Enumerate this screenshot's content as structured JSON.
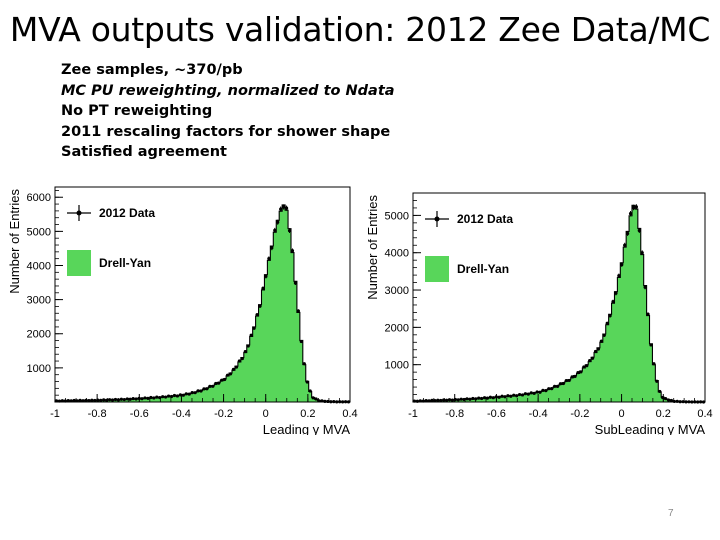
{
  "slide": {
    "title": "MVA outputs validation:  2012 Zee Data/MC",
    "notes": [
      {
        "text": "Zee samples, ~370/pb",
        "italic": false
      },
      {
        "text": "MC PU reweighting,  normalized to Ndata",
        "italic": true
      },
      {
        "text": "No PT reweighting",
        "italic": false
      },
      {
        "text": "2011 rescaling factors for shower shape",
        "italic": false
      },
      {
        "text": "Satisfied agreement",
        "italic": false
      }
    ],
    "page_number": "7"
  },
  "colors": {
    "mc_fill": "#58d65a",
    "mc_line": "#000000",
    "data_marker": "#000000"
  },
  "chart_data": [
    {
      "type": "area",
      "xlabel": "Leading γ MVA",
      "ylabel": "Number of Entries",
      "xlim": [
        -1,
        0.4
      ],
      "ylim": [
        0,
        6300
      ],
      "xticks": [
        "-1",
        "-0.8",
        "-0.6",
        "-0.4",
        "-0.2",
        "0",
        "0.2",
        "0.4"
      ],
      "yticks": [
        "1000",
        "2000",
        "3000",
        "4000",
        "5000",
        "6000"
      ],
      "grid": false,
      "legend_position": "top-left",
      "series": [
        {
          "name": "2012 Data",
          "kind": "points"
        },
        {
          "name": "Drell-Yan",
          "kind": "filled-histogram"
        }
      ],
      "x": [
        -1.0,
        -0.9,
        -0.8,
        -0.7,
        -0.6,
        -0.5,
        -0.4,
        -0.35,
        -0.3,
        -0.25,
        -0.2,
        -0.15,
        -0.1,
        -0.075,
        -0.05,
        -0.025,
        0.0,
        0.02,
        0.04,
        0.06,
        0.08,
        0.09,
        0.1,
        0.12,
        0.14,
        0.16,
        0.18,
        0.2,
        0.22,
        0.25,
        0.3,
        0.35
      ],
      "values": [
        30,
        40,
        50,
        70,
        100,
        140,
        200,
        260,
        350,
        480,
        650,
        950,
        1400,
        1800,
        2300,
        2900,
        3700,
        4300,
        4900,
        5400,
        5750,
        5800,
        5600,
        4800,
        3600,
        2300,
        1200,
        500,
        150,
        40,
        10,
        5
      ]
    },
    {
      "type": "area",
      "xlabel": "SubLeading γ MVA",
      "ylabel": "Number of Entries",
      "xlim": [
        -1,
        0.4
      ],
      "ylim": [
        0,
        5600
      ],
      "xticks": [
        "-1",
        "-0.8",
        "-0.6",
        "-0.4",
        "-0.2",
        "0",
        "0.2",
        "0.4"
      ],
      "yticks": [
        "1000",
        "2000",
        "3000",
        "4000",
        "5000"
      ],
      "grid": false,
      "legend_position": "top-left",
      "series": [
        {
          "name": "2012 Data",
          "kind": "points"
        },
        {
          "name": "Drell-Yan",
          "kind": "filled-histogram"
        }
      ],
      "x": [
        -1.0,
        -0.9,
        -0.8,
        -0.7,
        -0.6,
        -0.5,
        -0.4,
        -0.35,
        -0.3,
        -0.25,
        -0.2,
        -0.15,
        -0.1,
        -0.075,
        -0.05,
        -0.025,
        0.0,
        0.02,
        0.04,
        0.05,
        0.06,
        0.07,
        0.08,
        0.1,
        0.12,
        0.14,
        0.16,
        0.18,
        0.2,
        0.25,
        0.3,
        0.35
      ],
      "values": [
        20,
        40,
        60,
        90,
        130,
        180,
        260,
        340,
        450,
        600,
        800,
        1100,
        1550,
        1950,
        2450,
        3000,
        3700,
        4300,
        4900,
        5200,
        5300,
        5200,
        4900,
        3900,
        2700,
        1600,
        800,
        300,
        100,
        20,
        5,
        2
      ]
    }
  ]
}
